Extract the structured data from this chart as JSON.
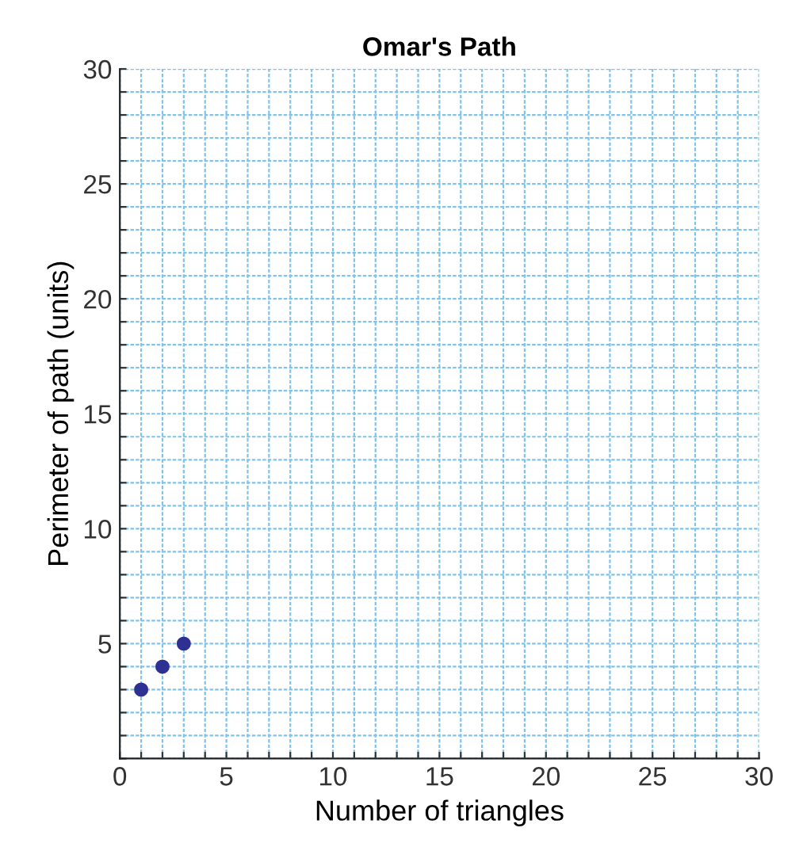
{
  "chart_data": {
    "type": "scatter",
    "title": "Omar's Path",
    "xlabel": "Number of triangles",
    "ylabel": "Perimeter of path (units)",
    "x": [
      1,
      2,
      3
    ],
    "series": [
      {
        "color": "#2e3192",
        "values": [
          3,
          4,
          5
        ]
      }
    ],
    "xlim": [
      0,
      30
    ],
    "ylim": [
      0,
      30
    ],
    "xticks": [
      0,
      {
        "value": 1,
        "label": null
      },
      {
        "value": 2,
        "label": null
      },
      {
        "value": 3,
        "label": null
      },
      {
        "value": 4,
        "label": null
      },
      5,
      {
        "value": 6,
        "label": null
      },
      {
        "value": 7,
        "label": null
      },
      {
        "value": 8,
        "label": null
      },
      {
        "value": 9,
        "label": null
      },
      10,
      {
        "value": 11,
        "label": null
      },
      {
        "value": 12,
        "label": null
      },
      {
        "value": 13,
        "label": null
      },
      {
        "value": 14,
        "label": null
      },
      15,
      {
        "value": 16,
        "label": null
      },
      {
        "value": 17,
        "label": null
      },
      {
        "value": 18,
        "label": null
      },
      {
        "value": 19,
        "label": null
      },
      20,
      {
        "value": 21,
        "label": null
      },
      {
        "value": 22,
        "label": null
      },
      {
        "value": 23,
        "label": null
      },
      {
        "value": 24,
        "label": null
      },
      25,
      {
        "value": 26,
        "label": null
      },
      {
        "value": 27,
        "label": null
      },
      {
        "value": 28,
        "label": null
      },
      {
        "value": 29,
        "label": null
      },
      30
    ],
    "yticks": [
      {
        "value": 0,
        "label": null
      },
      {
        "value": 1,
        "label": null
      },
      {
        "value": 2,
        "label": null
      },
      {
        "value": 3,
        "label": null
      },
      {
        "value": 4,
        "label": null
      },
      5,
      {
        "value": 6,
        "label": null
      },
      {
        "value": 7,
        "label": null
      },
      {
        "value": 8,
        "label": null
      },
      {
        "value": 9,
        "label": null
      },
      10,
      {
        "value": 11,
        "label": null
      },
      {
        "value": 12,
        "label": null
      },
      {
        "value": 13,
        "label": null
      },
      {
        "value": 14,
        "label": null
      },
      15,
      {
        "value": 16,
        "label": null
      },
      {
        "value": 17,
        "label": null
      },
      {
        "value": 18,
        "label": null
      },
      {
        "value": 19,
        "label": null
      },
      20,
      {
        "value": 21,
        "label": null
      },
      {
        "value": 22,
        "label": null
      },
      {
        "value": 23,
        "label": null
      },
      {
        "value": 24,
        "label": null
      },
      25,
      {
        "value": 26,
        "label": null
      },
      {
        "value": 27,
        "label": null
      },
      {
        "value": 28,
        "label": null
      },
      {
        "value": 29,
        "label": null
      },
      30
    ],
    "grid": true,
    "marker": "circle"
  }
}
